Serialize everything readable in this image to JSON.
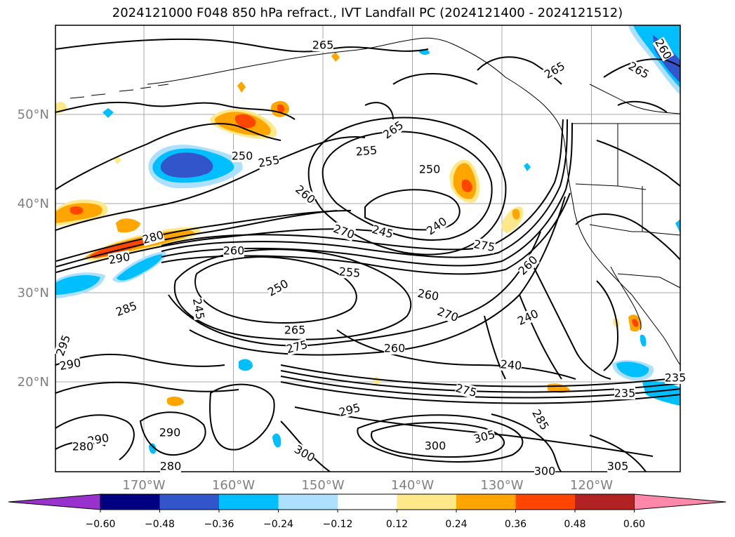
{
  "title": "2024121000 F048 850 hPa refract., IVT Landfall PC (2024121400 - 2024121512)",
  "map": {
    "lat_labels": [
      {
        "text": "50°N",
        "value": 50
      },
      {
        "text": "40°N",
        "value": 40
      },
      {
        "text": "30°N",
        "value": 30
      },
      {
        "text": "20°N",
        "value": 20
      }
    ],
    "lon_labels": [
      {
        "text": "170°W",
        "value": -170
      },
      {
        "text": "160°W",
        "value": -160
      },
      {
        "text": "150°W",
        "value": -150
      },
      {
        "text": "140°W",
        "value": -140
      },
      {
        "text": "130°W",
        "value": -130
      },
      {
        "text": "120°W",
        "value": -120
      }
    ],
    "contour_labels": [
      "265",
      "265",
      "265",
      "260",
      "265",
      "250",
      "255",
      "255",
      "250",
      "260",
      "280",
      "290",
      "260",
      "270",
      "245",
      "240",
      "275",
      "255",
      "250",
      "285",
      "245",
      "260",
      "270",
      "265",
      "275",
      "260",
      "240",
      "295",
      "240",
      "290",
      "275",
      "235",
      "295",
      "305",
      "285",
      "290",
      "300",
      "290",
      "280",
      "305",
      "300",
      "300",
      "280",
      "235",
      "260"
    ]
  },
  "colorbar": {
    "colors": [
      "#9932CC",
      "#000080",
      "#3355CC",
      "#00BFFF",
      "#ADE0FF",
      "#FFFFFF",
      "#FFE88A",
      "#FFA500",
      "#FF4500",
      "#B22222",
      "#FF88AA"
    ],
    "tick_labels": [
      "−0.60",
      "−0.48",
      "−0.36",
      "−0.24",
      "−0.12",
      "0.12",
      "0.24",
      "0.36",
      "0.48",
      "0.60"
    ]
  }
}
